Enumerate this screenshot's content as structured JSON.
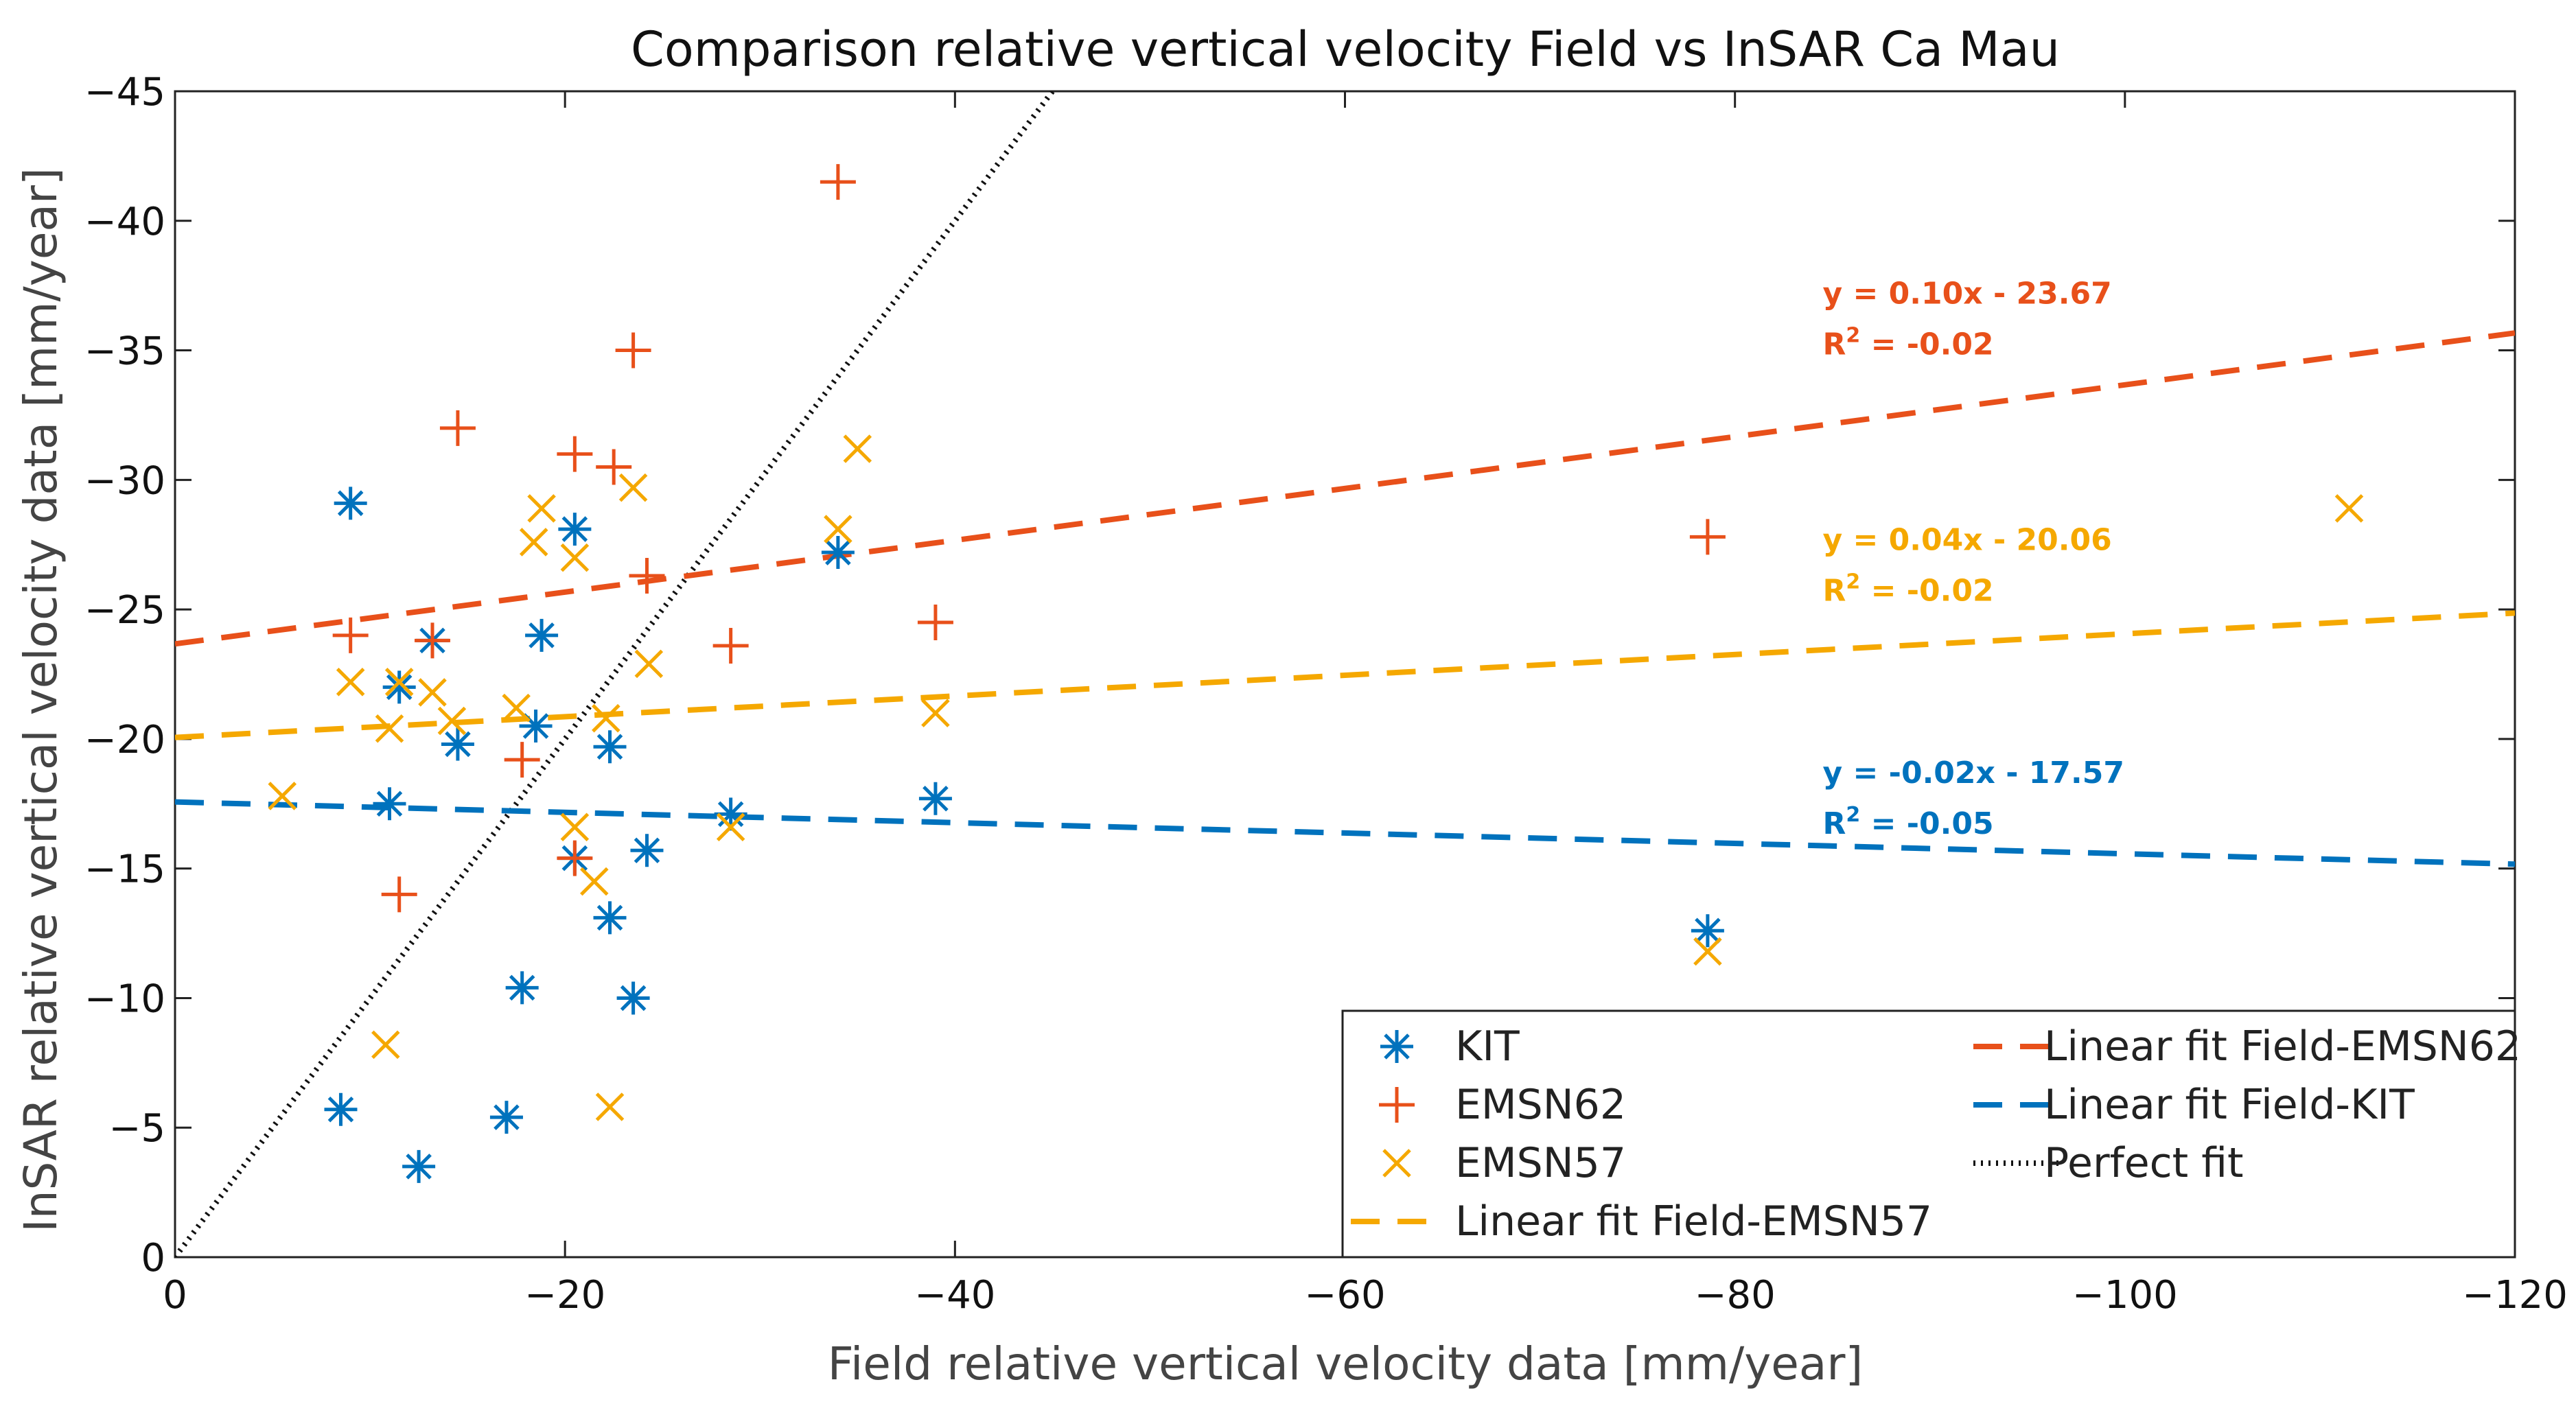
{
  "chart_data": {
    "type": "scatter",
    "title": "Comparison relative vertical velocity Field vs InSAR Ca Mau",
    "xlabel": "Field relative vertical velocity data [mm/year]",
    "ylabel": "InSAR relative vertical velocity data [mm/year]",
    "xlim": [
      0,
      -120
    ],
    "ylim": [
      0,
      -45
    ],
    "xticks": [
      0,
      -20,
      -40,
      -60,
      -80,
      -100,
      -120
    ],
    "xtick_labels": [
      "0",
      "−20",
      "−40",
      "−60",
      "−80",
      "−100",
      "−120"
    ],
    "yticks": [
      0,
      -5,
      -10,
      -15,
      -20,
      -25,
      -30,
      -35,
      -40,
      -45
    ],
    "ytick_labels": [
      "0",
      "−5",
      "−10",
      "−15",
      "−20",
      "−25",
      "−30",
      "−35",
      "−40",
      "−45"
    ],
    "series": [
      {
        "name": "KIT",
        "marker": "asterisk",
        "color": "#0072BD",
        "points": [
          [
            -9,
            -29.1
          ],
          [
            -20.5,
            -28.1
          ],
          [
            -18.8,
            -24
          ],
          [
            -34,
            -27.2
          ],
          [
            -13.2,
            -23.8
          ],
          [
            -11.5,
            -22
          ],
          [
            -11,
            -17.5
          ],
          [
            -14.5,
            -19.8
          ],
          [
            -18.5,
            -20.5
          ],
          [
            -22.3,
            -19.7
          ],
          [
            -28.5,
            -17.1
          ],
          [
            -39,
            -17.7
          ],
          [
            -20.5,
            -15.4
          ],
          [
            -24.2,
            -15.7
          ],
          [
            -22.3,
            -13.1
          ],
          [
            -17.8,
            -10.4
          ],
          [
            -23.5,
            -10.0
          ],
          [
            -8.5,
            -5.7
          ],
          [
            -17,
            -5.4
          ],
          [
            -12.5,
            -3.5
          ],
          [
            -78.6,
            -12.6
          ]
        ]
      },
      {
        "name": "EMSN62",
        "marker": "plus",
        "color": "#E8501A",
        "points": [
          [
            -34,
            -41.5
          ],
          [
            -23.5,
            -35
          ],
          [
            -14.5,
            -32
          ],
          [
            -20.5,
            -31
          ],
          [
            -22.5,
            -30.5
          ],
          [
            -24.2,
            -26.3
          ],
          [
            -9,
            -24
          ],
          [
            -13.2,
            -23.8
          ],
          [
            -28.5,
            -23.6
          ],
          [
            -39,
            -24.5
          ],
          [
            -17.8,
            -19.2
          ],
          [
            -11.5,
            -14
          ],
          [
            -20.5,
            -15.4
          ],
          [
            -78.6,
            -27.8
          ]
        ]
      },
      {
        "name": "EMSN57",
        "marker": "cross",
        "color": "#F5A800",
        "points": [
          [
            -18.8,
            -28.9
          ],
          [
            -18.4,
            -27.6
          ],
          [
            -20.5,
            -27.0
          ],
          [
            -23.5,
            -29.7
          ],
          [
            -35,
            -31.2
          ],
          [
            -34,
            -28.1
          ],
          [
            -9,
            -22.2
          ],
          [
            -11.5,
            -22.2
          ],
          [
            -13.2,
            -21.8
          ],
          [
            -11,
            -20.4
          ],
          [
            -14.2,
            -20.7
          ],
          [
            -17.5,
            -21.2
          ],
          [
            -22.1,
            -20.8
          ],
          [
            -24.3,
            -22.9
          ],
          [
            -39,
            -21
          ],
          [
            -5.5,
            -17.8
          ],
          [
            -20.5,
            -16.6
          ],
          [
            -21.5,
            -14.5
          ],
          [
            -28.5,
            -16.6
          ],
          [
            -10.8,
            -8.2
          ],
          [
            -22.3,
            -5.8
          ],
          [
            -78.6,
            -11.8
          ],
          [
            -111.5,
            -28.9
          ]
        ]
      }
    ],
    "fits": [
      {
        "name": "Linear fit Field-EMSN62",
        "color": "#E8501A",
        "slope": 0.1,
        "intercept": -23.67,
        "equation": "y = 0.10x - 23.67",
        "r2_prefix": "R",
        "r2_sup": "2",
        "r2_value": " = -0.02",
        "label_x": -84.5,
        "label_y": -36.8
      },
      {
        "name": "Linear fit Field-EMSN57",
        "color": "#F5A800",
        "slope": 0.04,
        "intercept": -20.06,
        "equation": "y = 0.04x - 20.06",
        "r2_prefix": "R",
        "r2_sup": "2",
        "r2_value": " = -0.02",
        "label_x": -84.5,
        "label_y": -27.3
      },
      {
        "name": "Linear fit Field-KIT",
        "color": "#0072BD",
        "slope": -0.02,
        "intercept": -17.57,
        "equation": "y = -0.02x - 17.57",
        "r2_prefix": "R",
        "r2_sup": "2",
        "r2_value": " = -0.05",
        "label_x": -84.5,
        "label_y": -18.3
      }
    ],
    "perfect_fit": {
      "name": "Perfect fit",
      "color": "#111111"
    },
    "legend_position": "bottom-right",
    "legend_order": [
      "KIT",
      "Linear fit Field-EMSN62",
      "EMSN62",
      "Linear fit Field-KIT",
      "EMSN57",
      "Perfect fit",
      "Linear fit Field-EMSN57"
    ]
  }
}
